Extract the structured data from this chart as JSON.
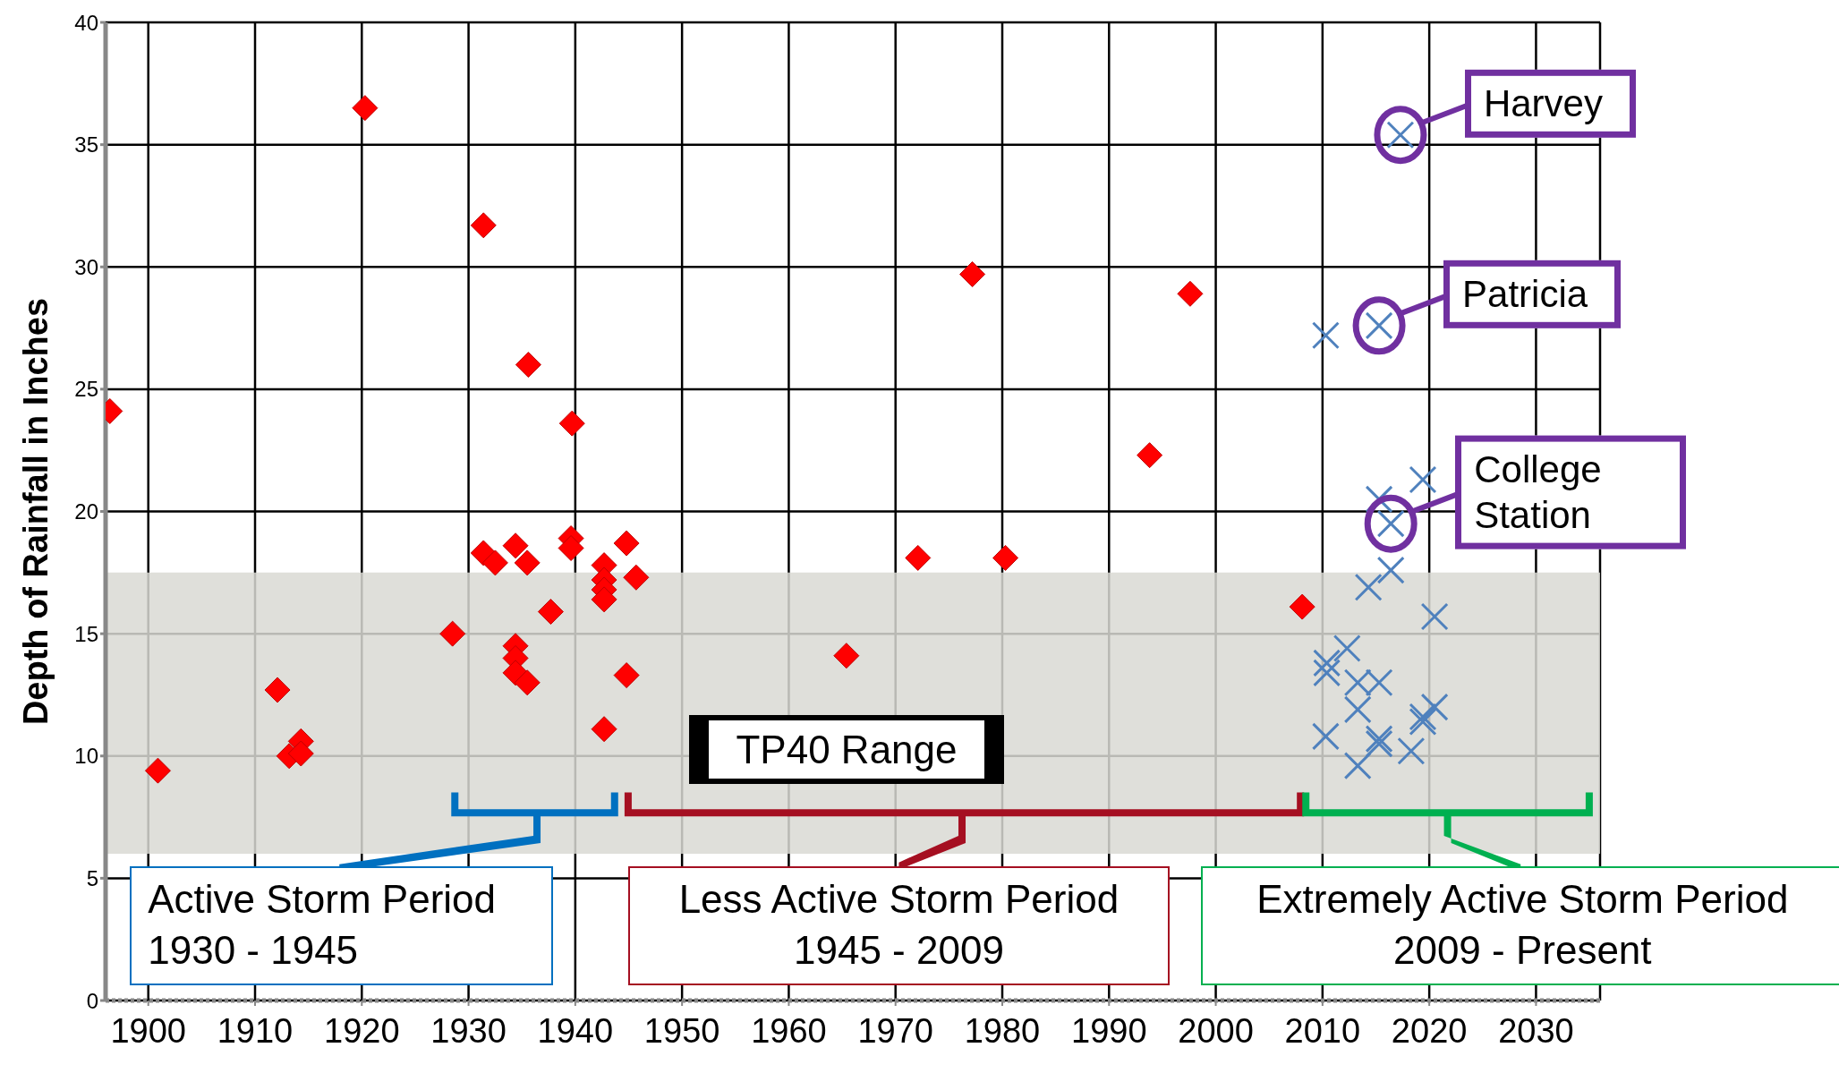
{
  "chart_data": {
    "type": "scatter",
    "ylabel": "Depth of Rainfall in Inches",
    "xlim": [
      1896,
      2036
    ],
    "xticks": [
      1900,
      1910,
      1920,
      1930,
      1940,
      1950,
      1960,
      1970,
      1980,
      1990,
      2000,
      2010,
      2020,
      2030
    ],
    "ylim": [
      0,
      40
    ],
    "yticks": [
      0,
      5,
      10,
      15,
      20,
      25,
      30,
      35,
      40
    ],
    "grid": true,
    "series": [
      {
        "color": "#ff0000",
        "marker": "diamond",
        "x": [
          1896.4,
          1900.9,
          1912.1,
          1913.2,
          1914.3,
          1914.3,
          1920.3,
          1928.5,
          1931.4,
          1931.4,
          1932.5,
          1934.4,
          1934.4,
          1934.4,
          1934.4,
          1935.5,
          1935.5,
          1935.6,
          1937.7,
          1939.6,
          1939.6,
          1939.7,
          1942.7,
          1942.7,
          1942.7,
          1942.7,
          1942.7,
          1944.8,
          1944.8,
          1945.7,
          1965.4,
          1972.1,
          1977.2,
          1980.3,
          1993.8,
          1997.6,
          2008.1
        ],
        "values": [
          24.1,
          9.4,
          12.7,
          10.0,
          10.6,
          10.1,
          36.5,
          15.0,
          31.7,
          18.3,
          17.9,
          18.6,
          14.5,
          14.0,
          13.4,
          17.9,
          13.0,
          26.0,
          15.9,
          18.9,
          18.5,
          23.6,
          17.8,
          17.2,
          16.8,
          16.4,
          11.1,
          18.7,
          13.3,
          17.3,
          14.1,
          18.1,
          29.7,
          18.1,
          22.3,
          28.9,
          16.1
        ]
      },
      {
        "color": "#4f81bd",
        "marker": "cross",
        "x": [
          2010.3,
          2010.3,
          2010.4,
          2010.4,
          2012.3,
          2013.3,
          2013.3,
          2013.3,
          2014.3,
          2015.3,
          2015.3,
          2015.3,
          2015.3,
          2015.3,
          2016.4,
          2016.4,
          2017.3,
          2018.3,
          2019.4,
          2019.4,
          2019.4,
          2020.5,
          2020.5
        ],
        "values": [
          27.2,
          10.8,
          13.8,
          13.4,
          14.4,
          13.0,
          11.9,
          9.6,
          16.9,
          27.6,
          20.5,
          13.0,
          10.7,
          10.5,
          19.5,
          17.6,
          35.4,
          10.2,
          21.3,
          11.6,
          11.4,
          15.7,
          12.0
        ]
      }
    ],
    "bands": [
      {
        "axis": "y",
        "from": 6,
        "to": 17.5,
        "label": "TP40 Range",
        "color": "#d9d9d4"
      }
    ],
    "annotations": [
      {
        "text": "Harvey",
        "x": 2017.3,
        "y": 35.4
      },
      {
        "text": "Patricia",
        "x": 2015.3,
        "y": 27.6
      },
      {
        "text": "College Station",
        "x": 2016.4,
        "y": 19.5
      },
      "Active Storm Period\n1930 - 1945",
      "Less Active Storm Period\n1945 - 2009",
      "Extremely Active Storm Period\n2009 - Present"
    ]
  }
}
